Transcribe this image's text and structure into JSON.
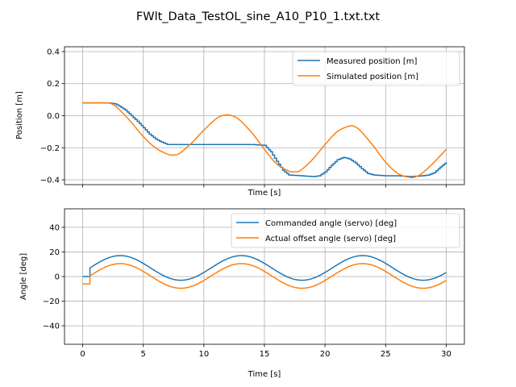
{
  "title": "FWlt_Data_TestOL_sine_A10_P10_1.txt.txt",
  "chart_data": [
    {
      "type": "line",
      "xlabel": "Time [s]",
      "ylabel": "Position [m]",
      "xlim": [
        -1.5,
        31.5
      ],
      "ylim": [
        -0.43,
        0.43
      ],
      "xticks": [
        0,
        5,
        10,
        15,
        20,
        25,
        30
      ],
      "xtick_labels_visible": false,
      "yticks": [
        -0.4,
        -0.2,
        0.0,
        0.2,
        0.4
      ],
      "ytick_labels": [
        "−0.4",
        "−0.2",
        "0.0",
        "0.2",
        "0.4"
      ],
      "grid": true,
      "legend_position": "top-right",
      "series": [
        {
          "name": "Measured position [m]",
          "color": "#1f77b4",
          "style": "step",
          "x": [
            0,
            1,
            2,
            2.6,
            3,
            3.5,
            4,
            4.5,
            5,
            5.5,
            6,
            6.5,
            7,
            7.5,
            8,
            9,
            10,
            11,
            12,
            13,
            14,
            15,
            15.5,
            16,
            16.5,
            17,
            18,
            19,
            19.5,
            20,
            20.5,
            21,
            21.5,
            22,
            22.5,
            23,
            23.5,
            24,
            25,
            26,
            27,
            28,
            28.5,
            29,
            29.5,
            30
          ],
          "y": [
            0.08,
            0.08,
            0.08,
            0.075,
            0.06,
            0.035,
            0.0,
            -0.035,
            -0.075,
            -0.115,
            -0.145,
            -0.165,
            -0.18,
            -0.18,
            -0.18,
            -0.18,
            -0.18,
            -0.18,
            -0.18,
            -0.18,
            -0.18,
            -0.185,
            -0.225,
            -0.285,
            -0.34,
            -0.37,
            -0.375,
            -0.38,
            -0.375,
            -0.35,
            -0.31,
            -0.275,
            -0.26,
            -0.27,
            -0.295,
            -0.33,
            -0.36,
            -0.37,
            -0.375,
            -0.375,
            -0.38,
            -0.375,
            -0.37,
            -0.355,
            -0.32,
            -0.29
          ]
        },
        {
          "name": "Simulated position [m]",
          "color": "#ff7f0e",
          "style": "line",
          "x": [
            0,
            1,
            2,
            2.5,
            3,
            4,
            5,
            6,
            7,
            7.5,
            8,
            9,
            10,
            11,
            11.5,
            12,
            12.5,
            13,
            14,
            15,
            16,
            17,
            17.5,
            18,
            19,
            20,
            21,
            22,
            22.5,
            23,
            24,
            25,
            26,
            27,
            27.5,
            28,
            29,
            30
          ],
          "y": [
            0.08,
            0.08,
            0.08,
            0.07,
            0.04,
            -0.04,
            -0.13,
            -0.2,
            -0.24,
            -0.245,
            -0.235,
            -0.17,
            -0.09,
            -0.02,
            0.0,
            0.005,
            -0.005,
            -0.03,
            -0.11,
            -0.21,
            -0.3,
            -0.345,
            -0.35,
            -0.34,
            -0.27,
            -0.18,
            -0.1,
            -0.065,
            -0.07,
            -0.1,
            -0.19,
            -0.29,
            -0.36,
            -0.385,
            -0.38,
            -0.36,
            -0.29,
            -0.21
          ]
        }
      ]
    },
    {
      "type": "line",
      "xlabel": "Time [s]",
      "ylabel": "Angle [deg]",
      "xlim": [
        -1.5,
        31.5
      ],
      "ylim": [
        -55,
        55
      ],
      "xticks": [
        0,
        5,
        10,
        15,
        20,
        25,
        30
      ],
      "xtick_labels": [
        "0",
        "5",
        "10",
        "15",
        "20",
        "25",
        "30"
      ],
      "yticks": [
        -40,
        -20,
        0,
        20,
        40
      ],
      "ytick_labels": [
        "−40",
        "−20",
        "0",
        "20",
        "40"
      ],
      "grid": true,
      "legend_position": "top-right",
      "series": [
        {
          "name": "Commanded angle (servo) [deg]",
          "color": "#1f77b4",
          "pre": {
            "x": [
              0,
              0.6
            ],
            "y": [
              0,
              0
            ]
          },
          "sine": {
            "offset": 7,
            "amplitude": 10,
            "period": 10,
            "start": 0.6,
            "end": 30
          }
        },
        {
          "name": "Actual offset angle (servo) [deg]",
          "color": "#ff7f0e",
          "pre": {
            "x": [
              0,
              0.6
            ],
            "y": [
              -6,
              -6
            ]
          },
          "sine": {
            "offset": 0.5,
            "amplitude": 10,
            "period": 10,
            "start": 0.6,
            "end": 30
          }
        }
      ]
    }
  ]
}
